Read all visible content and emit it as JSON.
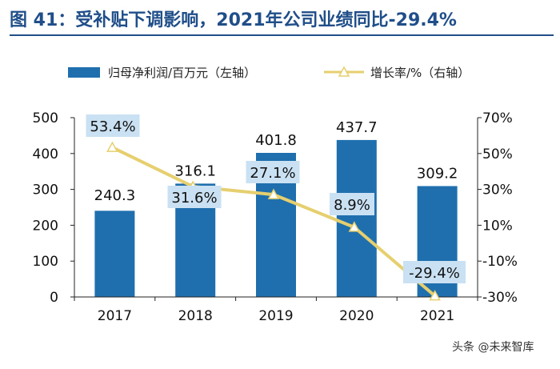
{
  "header": {
    "title": "图 41：受补贴下调影响，2021年公司业绩同比-29.4%"
  },
  "watermark": "头条 @未来智库",
  "colors": {
    "bar": "#1f6fae",
    "line": "#e6cf6e",
    "label_box": "#c9e1f2",
    "title": "#1f4e89"
  },
  "chart_data": {
    "type": "bar",
    "categories": [
      "2017",
      "2018",
      "2019",
      "2020",
      "2021"
    ],
    "series": [
      {
        "name": "归母净利润/百万元（左轴）",
        "type": "bar",
        "axis": "left",
        "values": [
          240.3,
          316.1,
          401.8,
          437.7,
          309.2
        ],
        "labels": [
          "240.3",
          "316.1",
          "401.8",
          "437.7",
          "309.2"
        ]
      },
      {
        "name": "增长率/%（右轴）",
        "type": "line",
        "axis": "right",
        "values": [
          53.4,
          31.6,
          27.1,
          8.9,
          -29.4
        ],
        "labels": [
          "53.4%",
          "31.6%",
          "27.1%",
          "8.9%",
          "-29.4%"
        ]
      }
    ],
    "y_left": {
      "min": 0,
      "max": 500,
      "step": 100,
      "ticks": [
        "0",
        "100",
        "200",
        "300",
        "400",
        "500"
      ]
    },
    "y_right": {
      "min": -30,
      "max": 70,
      "step": 20,
      "ticks": [
        "-30%",
        "-10%",
        "10%",
        "30%",
        "50%",
        "70%"
      ]
    },
    "legend_position": "top",
    "grid": false
  }
}
